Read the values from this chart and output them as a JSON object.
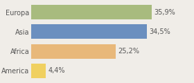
{
  "categories": [
    "America",
    "Africa",
    "Asia",
    "Europa"
  ],
  "values": [
    4.4,
    25.2,
    34.5,
    35.9
  ],
  "labels": [
    "4,4%",
    "25,2%",
    "34,5%",
    "35,9%"
  ],
  "bar_colors": [
    "#f0d060",
    "#e8b87a",
    "#6b8fbf",
    "#a8bb7e"
  ],
  "background_color": "#f0ede8",
  "xlim": [
    0,
    48
  ],
  "bar_height": 0.75,
  "label_fontsize": 7.0,
  "category_fontsize": 7.0,
  "label_color": "#555555",
  "tick_color": "#555555"
}
